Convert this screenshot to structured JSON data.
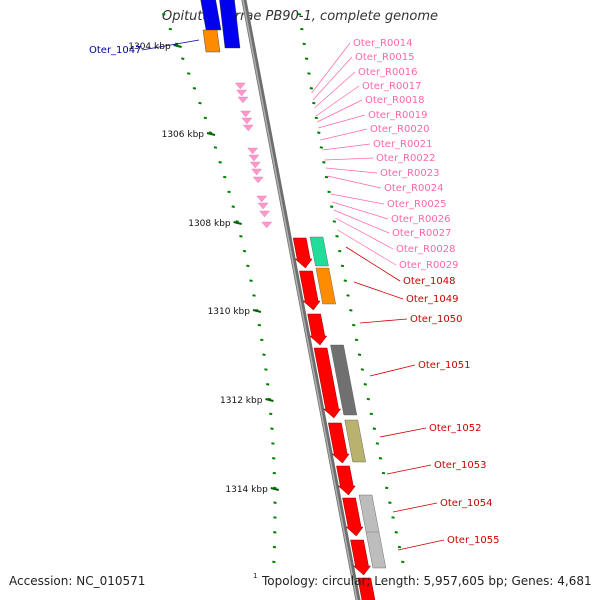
{
  "header": {
    "title": "Opitutus terrae PB90-1, complete genome"
  },
  "footer": {
    "accession": "Accession: NC_010571",
    "footnote_mark": "1",
    "stats": "Topology: circular; Length: 5,957,605 bp; Genes: 4,681"
  },
  "colors": {
    "backbone": "#8a8a8a",
    "tick": "#008000",
    "cds": "#ff0000",
    "rna": "#ff99cc",
    "rna_label": "#ff66aa",
    "cds_label": "#cc0000",
    "highlight_label": "#000099"
  },
  "ruler": [
    {
      "label": "1304 kbp"
    },
    {
      "label": "1306 kbp"
    },
    {
      "label": "1308 kbp"
    },
    {
      "label": "1310 kbp"
    },
    {
      "label": "1312 kbp"
    },
    {
      "label": "1314 kbp"
    }
  ],
  "highlight_gene": "Oter_1047",
  "rna_genes": [
    "Oter_R0014",
    "Oter_R0015",
    "Oter_R0016",
    "Oter_R0017",
    "Oter_R0018",
    "Oter_R0019",
    "Oter_R0020",
    "Oter_R0021",
    "Oter_R0022",
    "Oter_R0023",
    "Oter_R0024",
    "Oter_R0025",
    "Oter_R0026",
    "Oter_R0027",
    "Oter_R0028",
    "Oter_R0029"
  ],
  "cds_genes": [
    "Oter_1048",
    "Oter_1049",
    "Oter_1050",
    "Oter_1051",
    "Oter_1052",
    "Oter_1053",
    "Oter_1054",
    "Oter_1055"
  ]
}
